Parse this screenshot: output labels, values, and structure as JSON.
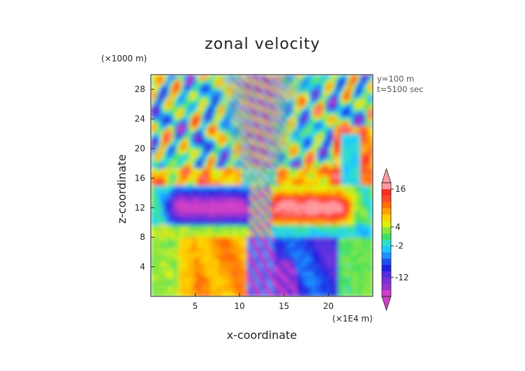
{
  "chart_data": {
    "type": "heatmap",
    "title": "zonal velocity",
    "xlabel": "x-coordinate",
    "ylabel": "z-coordinate",
    "x_units": "(×1E4 m)",
    "z_units": "(×1000 m)",
    "annotations": [
      "y=100 m",
      "t=5100 sec"
    ],
    "xlim": [
      0,
      25
    ],
    "ylim": [
      0,
      30
    ],
    "x_ticks": [
      5,
      10,
      15,
      20
    ],
    "y_ticks": [
      4,
      8,
      12,
      16,
      20,
      24,
      28
    ],
    "colorbar": {
      "tick_labels": [
        "16",
        "4",
        "-2",
        "-12"
      ],
      "tick_values": [
        16,
        4,
        -2,
        -12
      ],
      "levels": [
        -18,
        -16,
        -14,
        -12,
        -10,
        -8,
        -6,
        -4,
        -2,
        0,
        2,
        4,
        6,
        8,
        10,
        12,
        14,
        16,
        18
      ],
      "colors": [
        "#d040c8",
        "#9b30d0",
        "#7a30d8",
        "#5030e0",
        "#2020e0",
        "#1e50f0",
        "#1e90ff",
        "#1ec8ff",
        "#30e0c8",
        "#40e060",
        "#8ce63c",
        "#e0f000",
        "#ffd000",
        "#ffa000",
        "#ff7000",
        "#ff4a2a",
        "#ff2a20",
        "#ff9aa0"
      ],
      "extend": "both"
    }
  }
}
